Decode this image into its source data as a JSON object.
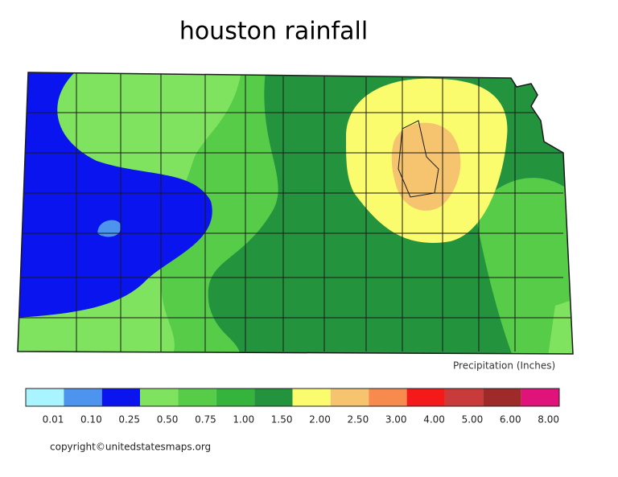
{
  "header": {
    "title": "houston rainfall"
  },
  "legend": {
    "title": "Precipitation (Inches)",
    "colors": [
      "#a8f4ff",
      "#4c94ee",
      "#0a14ee",
      "#7fe35f",
      "#56cc48",
      "#34b43c",
      "#24933e",
      "#fbfb6e",
      "#f6c36f",
      "#f78b4e",
      "#f41a1a",
      "#c93b3b",
      "#9e2a2a",
      "#e0137a"
    ],
    "labels": [
      "0.01",
      "0.10",
      "0.25",
      "0.50",
      "0.75",
      "1.00",
      "1.50",
      "2.00",
      "2.50",
      "3.00",
      "4.00",
      "5.00",
      "6.00",
      "8.00"
    ]
  },
  "footer": {
    "copyright": "copyright©unitedstatesmaps.org"
  }
}
